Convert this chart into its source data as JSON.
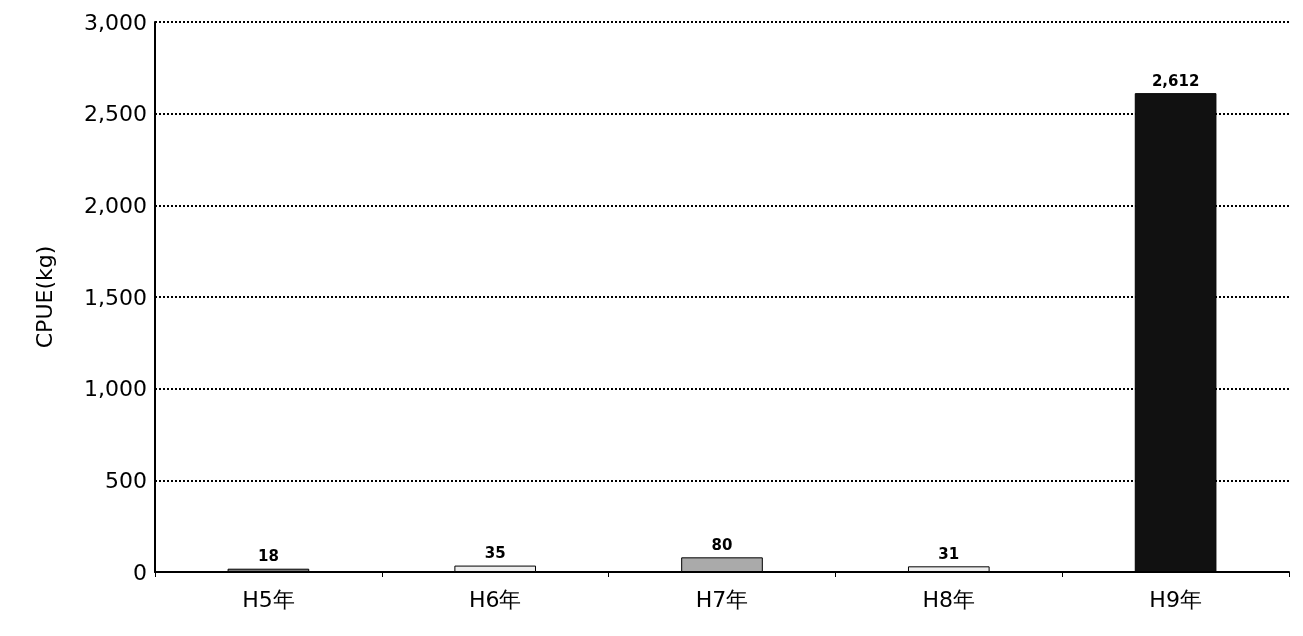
{
  "chart_data": {
    "type": "bar",
    "ylabel": "CPUE(kg)",
    "categories": [
      "H5年",
      "H6年",
      "H7年",
      "H8年",
      "H9年"
    ],
    "values": [
      18,
      35,
      80,
      31,
      2612
    ],
    "colors": [
      "#777777",
      "#eeeeee",
      "#aaaaaa",
      "#eeeeee",
      "#111111"
    ],
    "ylim": [
      0,
      3000
    ],
    "yticks": [
      0,
      {
        "value": 500,
        "label": "500"
      },
      {
        "value": 1000,
        "label": "1,000"
      },
      {
        "value": 1500,
        "label": "1,500"
      },
      {
        "value": 2000,
        "label": "2,000"
      },
      {
        "value": 2500,
        "label": "2,500"
      },
      {
        "value": 3000,
        "label": "3,000"
      }
    ],
    "value_labels": [
      "18",
      "35",
      "80",
      "31",
      "2,612"
    ],
    "grid": "y"
  }
}
